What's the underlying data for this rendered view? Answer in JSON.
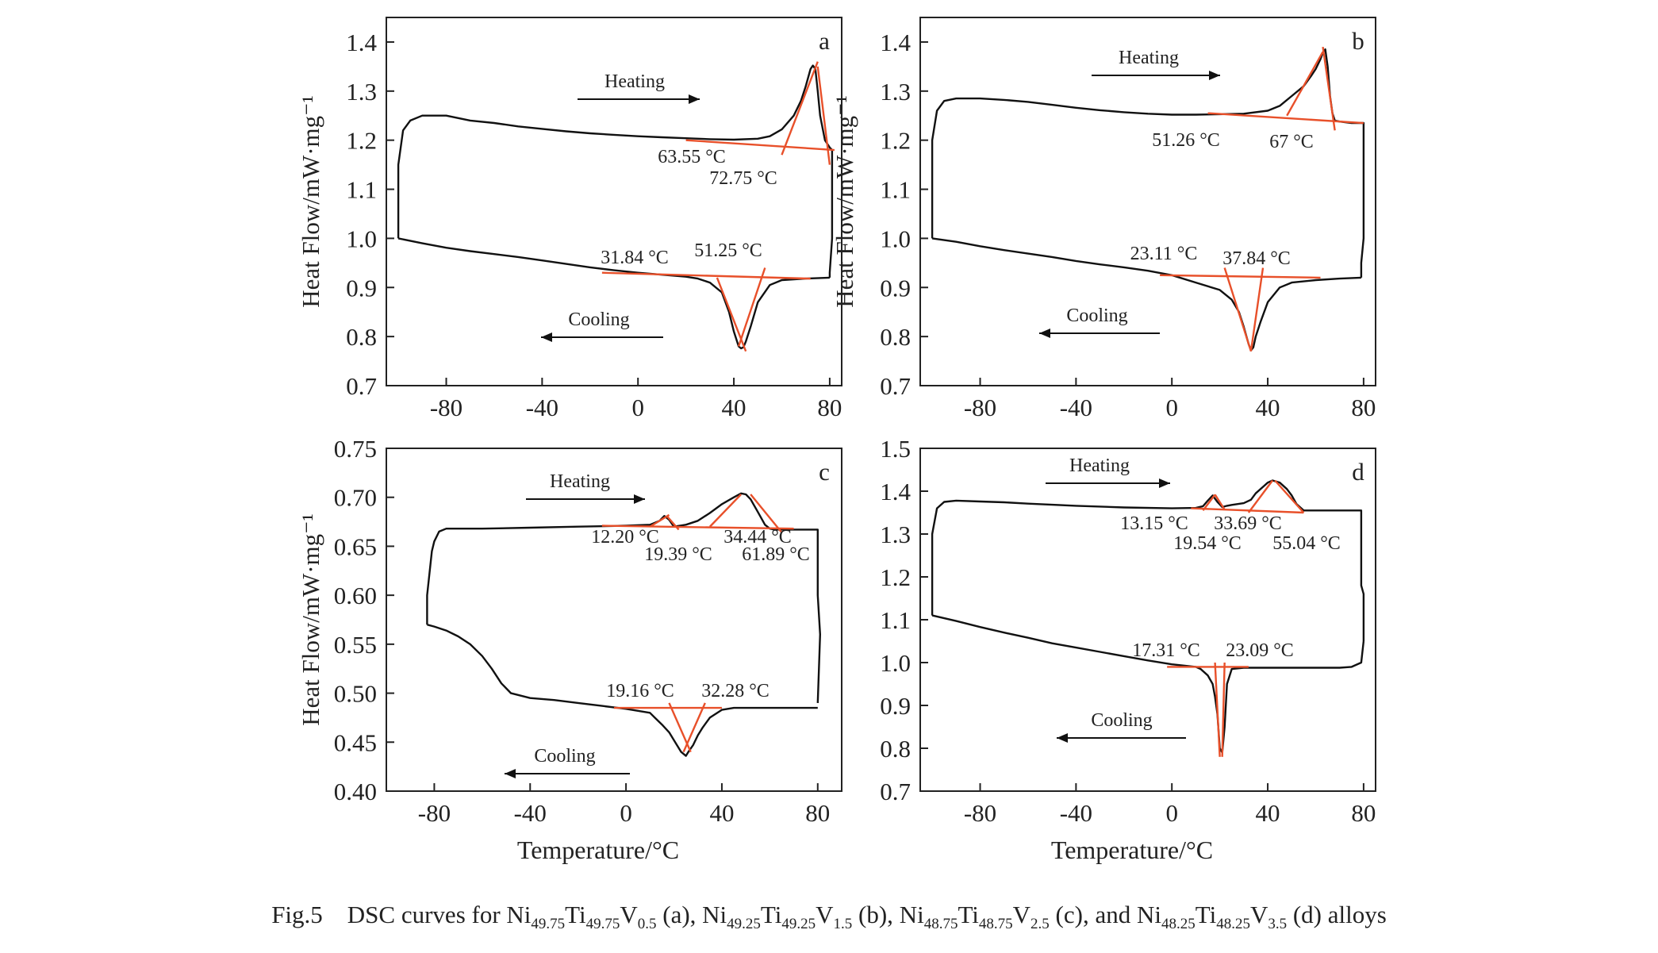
{
  "caption": {
    "label": "Fig.5",
    "text_before_a": "DSC curves for Ni",
    "a_alloy": [
      "Ni",
      "49.75",
      "Ti",
      "49.75",
      "V",
      "0.5"
    ],
    "b_alloy": [
      "Ni",
      "49.25",
      "Ti",
      "49.25",
      "V",
      "1.5"
    ],
    "c_alloy": [
      "Ni",
      "48.75",
      "Ti",
      "48.75",
      "V",
      "2.5"
    ],
    "d_alloy": [
      "Ni",
      "48.25",
      "Ti",
      "48.25",
      "V",
      "3.5"
    ],
    "suffix": "alloys"
  },
  "chart_data": [
    {
      "panel": "a",
      "type": "line",
      "ylabel": "Heat Flow/mW·mg⁻¹",
      "xlabel": "",
      "xlim": [
        -105,
        85
      ],
      "ylim": [
        0.7,
        1.45
      ],
      "xticks": [
        -80,
        -40,
        0,
        40,
        80
      ],
      "yticks": [
        0.7,
        0.8,
        0.9,
        1.0,
        1.1,
        1.2,
        1.3,
        1.4
      ],
      "ytick_labels": [
        "0.7",
        "0.8",
        "0.9",
        "1.0",
        "1.1",
        "1.2",
        "1.3",
        "1.4"
      ],
      "series": [
        {
          "role": "heating",
          "x": [
            -100,
            -100,
            -98,
            -95,
            -90,
            -85,
            -80,
            -70,
            -60,
            -50,
            -40,
            -30,
            -20,
            -10,
            0,
            10,
            20,
            30,
            40,
            50,
            55,
            60,
            65,
            68,
            70,
            72,
            73,
            74,
            75,
            76,
            78,
            80,
            81,
            81,
            80,
            80
          ],
          "y": [
            1.0,
            1.15,
            1.22,
            1.24,
            1.25,
            1.25,
            1.25,
            1.24,
            1.235,
            1.228,
            1.223,
            1.218,
            1.214,
            1.211,
            1.208,
            1.206,
            1.204,
            1.202,
            1.201,
            1.203,
            1.208,
            1.222,
            1.25,
            1.28,
            1.31,
            1.345,
            1.352,
            1.345,
            1.3,
            1.25,
            1.2,
            1.185,
            1.18,
            1.0,
            0.93,
            0.92
          ]
        },
        {
          "role": "cooling",
          "x": [
            80,
            70,
            60,
            55,
            50,
            47,
            45,
            44,
            43,
            42,
            40,
            38,
            35,
            30,
            25,
            20,
            10,
            0,
            -10,
            -20,
            -30,
            -40,
            -50,
            -60,
            -70,
            -80,
            -90,
            -100
          ],
          "y": [
            0.92,
            0.918,
            0.915,
            0.905,
            0.87,
            0.82,
            0.79,
            0.778,
            0.776,
            0.78,
            0.81,
            0.85,
            0.89,
            0.91,
            0.918,
            0.922,
            0.926,
            0.93,
            0.935,
            0.941,
            0.948,
            0.955,
            0.962,
            0.968,
            0.974,
            0.981,
            0.99,
            1.0
          ]
        }
      ],
      "annotations": [
        {
          "text": "Heating",
          "arrow": "right"
        },
        {
          "text": "Cooling",
          "arrow": "left"
        },
        {
          "text": "63.55 °C"
        },
        {
          "text": "72.75 °C"
        },
        {
          "text": "31.84 °C"
        },
        {
          "text": "51.25 °C"
        }
      ],
      "panel_label": "a"
    },
    {
      "panel": "b",
      "type": "line",
      "ylabel": "Heat Flow/mW·mg⁻¹",
      "xlabel": "",
      "xlim": [
        -105,
        85
      ],
      "ylim": [
        0.7,
        1.45
      ],
      "xticks": [
        -80,
        -40,
        0,
        40,
        80
      ],
      "yticks": [
        0.7,
        0.8,
        0.9,
        1.0,
        1.1,
        1.2,
        1.3,
        1.4
      ],
      "ytick_labels": [
        "0.7",
        "0.8",
        "0.9",
        "1.0",
        "1.1",
        "1.2",
        "1.3",
        "1.4"
      ],
      "series": [
        {
          "role": "heating",
          "x": [
            -100,
            -100,
            -98,
            -95,
            -90,
            -80,
            -70,
            -60,
            -50,
            -40,
            -30,
            -20,
            -10,
            0,
            10,
            20,
            30,
            40,
            45,
            50,
            55,
            58,
            60,
            62,
            63,
            64,
            65,
            66,
            67,
            68,
            70,
            75,
            80,
            80,
            79,
            79
          ],
          "y": [
            1.0,
            1.2,
            1.26,
            1.28,
            1.285,
            1.285,
            1.282,
            1.278,
            1.272,
            1.266,
            1.261,
            1.257,
            1.254,
            1.252,
            1.252,
            1.253,
            1.254,
            1.26,
            1.27,
            1.29,
            1.31,
            1.33,
            1.345,
            1.365,
            1.378,
            1.385,
            1.35,
            1.29,
            1.255,
            1.24,
            1.238,
            1.235,
            1.235,
            1.0,
            0.95,
            0.92
          ]
        },
        {
          "role": "cooling",
          "x": [
            79,
            70,
            60,
            50,
            45,
            40,
            37,
            35,
            34,
            33,
            32,
            30,
            28,
            25,
            20,
            10,
            0,
            -10,
            -20,
            -30,
            -40,
            -50,
            -60,
            -70,
            -80,
            -90,
            -100
          ],
          "y": [
            0.92,
            0.918,
            0.915,
            0.91,
            0.9,
            0.87,
            0.83,
            0.8,
            0.778,
            0.772,
            0.785,
            0.82,
            0.85,
            0.875,
            0.895,
            0.91,
            0.925,
            0.934,
            0.941,
            0.947,
            0.954,
            0.962,
            0.969,
            0.976,
            0.984,
            0.993,
            1.0
          ]
        }
      ],
      "annotations": [
        {
          "text": "Heating",
          "arrow": "right"
        },
        {
          "text": "Cooling",
          "arrow": "left"
        },
        {
          "text": "51.26 °C"
        },
        {
          "text": "67 °C"
        },
        {
          "text": "23.11 °C"
        },
        {
          "text": "37.84 °C"
        }
      ],
      "panel_label": "b"
    },
    {
      "panel": "c",
      "type": "line",
      "ylabel": "Heat Flow/mW·mg⁻¹",
      "xlabel": "Temperature/°C",
      "xlim": [
        -100,
        90
      ],
      "ylim": [
        0.4,
        0.75
      ],
      "xticks": [
        -80,
        -40,
        0,
        40,
        80
      ],
      "yticks": [
        0.4,
        0.45,
        0.5,
        0.55,
        0.6,
        0.65,
        0.7,
        0.75
      ],
      "ytick_labels": [
        "0.40",
        "0.45",
        "0.50",
        "0.55",
        "0.60",
        "0.65",
        "0.70",
        "0.75"
      ],
      "series": [
        {
          "role": "heating",
          "x": [
            -83,
            -83,
            -81,
            -80,
            -78,
            -75,
            -70,
            -60,
            -40,
            -20,
            0,
            10,
            14,
            16,
            18,
            20,
            25,
            30,
            35,
            40,
            45,
            48,
            50,
            52,
            55,
            58,
            60,
            62,
            65,
            70,
            75,
            80,
            80,
            81,
            80
          ],
          "y": [
            0.57,
            0.6,
            0.645,
            0.655,
            0.665,
            0.668,
            0.668,
            0.668,
            0.669,
            0.67,
            0.671,
            0.672,
            0.676,
            0.681,
            0.677,
            0.67,
            0.672,
            0.676,
            0.684,
            0.693,
            0.7,
            0.704,
            0.703,
            0.698,
            0.685,
            0.672,
            0.668,
            0.667,
            0.667,
            0.667,
            0.667,
            0.667,
            0.6,
            0.56,
            0.49
          ]
        },
        {
          "role": "cooling",
          "x": [
            80,
            70,
            60,
            45,
            40,
            35,
            32,
            30,
            28,
            26,
            25,
            23,
            20,
            18,
            15,
            12,
            10,
            5,
            0,
            -10,
            -20,
            -30,
            -40,
            -48,
            -52,
            -56,
            -60,
            -65,
            -70,
            -75,
            -80,
            -83
          ],
          "y": [
            0.485,
            0.485,
            0.485,
            0.485,
            0.483,
            0.475,
            0.465,
            0.457,
            0.447,
            0.44,
            0.436,
            0.44,
            0.452,
            0.46,
            0.468,
            0.475,
            0.48,
            0.482,
            0.484,
            0.487,
            0.49,
            0.493,
            0.495,
            0.5,
            0.51,
            0.525,
            0.538,
            0.55,
            0.558,
            0.564,
            0.568,
            0.57
          ]
        }
      ],
      "annotations": [
        {
          "text": "Heating",
          "arrow": "right"
        },
        {
          "text": "Cooling",
          "arrow": "left"
        },
        {
          "text": "12.20 °C"
        },
        {
          "text": "19.39 °C"
        },
        {
          "text": "34.44 °C"
        },
        {
          "text": "61.89 °C"
        },
        {
          "text": "19.16 °C"
        },
        {
          "text": "32.28 °C"
        }
      ],
      "panel_label": "c"
    },
    {
      "panel": "d",
      "type": "line",
      "ylabel": "",
      "xlabel": "Temperature/°C",
      "xlim": [
        -105,
        85
      ],
      "ylim": [
        0.7,
        1.5
      ],
      "xticks": [
        -80,
        -40,
        0,
        40,
        80
      ],
      "yticks": [
        0.7,
        0.8,
        0.9,
        1.0,
        1.1,
        1.2,
        1.3,
        1.4,
        1.5
      ],
      "ytick_labels": [
        "0.7",
        "0.8",
        "0.9",
        "1.0",
        "1.1",
        "1.2",
        "1.3",
        "1.4",
        "1.5"
      ],
      "series": [
        {
          "role": "heating",
          "x": [
            -100,
            -100,
            -98,
            -95,
            -90,
            -80,
            -70,
            -60,
            -40,
            -20,
            0,
            10,
            13,
            15,
            17,
            19,
            21,
            23,
            25,
            30,
            33,
            35,
            38,
            40,
            42,
            45,
            48,
            50,
            52,
            55,
            57,
            60,
            70,
            79,
            79,
            80,
            80
          ],
          "y": [
            1.11,
            1.3,
            1.36,
            1.375,
            1.378,
            1.376,
            1.374,
            1.371,
            1.366,
            1.362,
            1.36,
            1.361,
            1.365,
            1.378,
            1.39,
            1.375,
            1.363,
            1.366,
            1.368,
            1.372,
            1.38,
            1.395,
            1.41,
            1.42,
            1.425,
            1.42,
            1.405,
            1.39,
            1.37,
            1.355,
            1.355,
            1.355,
            1.355,
            1.355,
            1.18,
            1.16,
            1.05
          ]
        },
        {
          "role": "cooling",
          "x": [
            80,
            79,
            75,
            70,
            60,
            50,
            40,
            30,
            25,
            23,
            22,
            21,
            20,
            19,
            18,
            17,
            15,
            12,
            10,
            5,
            0,
            -10,
            -20,
            -30,
            -40,
            -50,
            -60,
            -70,
            -80,
            -90,
            -100
          ],
          "y": [
            1.05,
            1.0,
            0.99,
            0.988,
            0.988,
            0.988,
            0.988,
            0.988,
            0.985,
            0.95,
            0.85,
            0.79,
            0.8,
            0.88,
            0.92,
            0.95,
            0.97,
            0.985,
            0.99,
            0.993,
            0.996,
            1.005,
            1.015,
            1.025,
            1.035,
            1.045,
            1.058,
            1.07,
            1.083,
            1.097,
            1.11
          ]
        }
      ],
      "annotations": [
        {
          "text": "Heating",
          "arrow": "right"
        },
        {
          "text": "Cooling",
          "arrow": "left"
        },
        {
          "text": "13.15 °C"
        },
        {
          "text": "19.54 °C"
        },
        {
          "text": "33.69 °C"
        },
        {
          "text": "55.04 °C"
        },
        {
          "text": "17.31 °C"
        },
        {
          "text": "23.09 °C"
        }
      ],
      "panel_label": "d"
    }
  ]
}
